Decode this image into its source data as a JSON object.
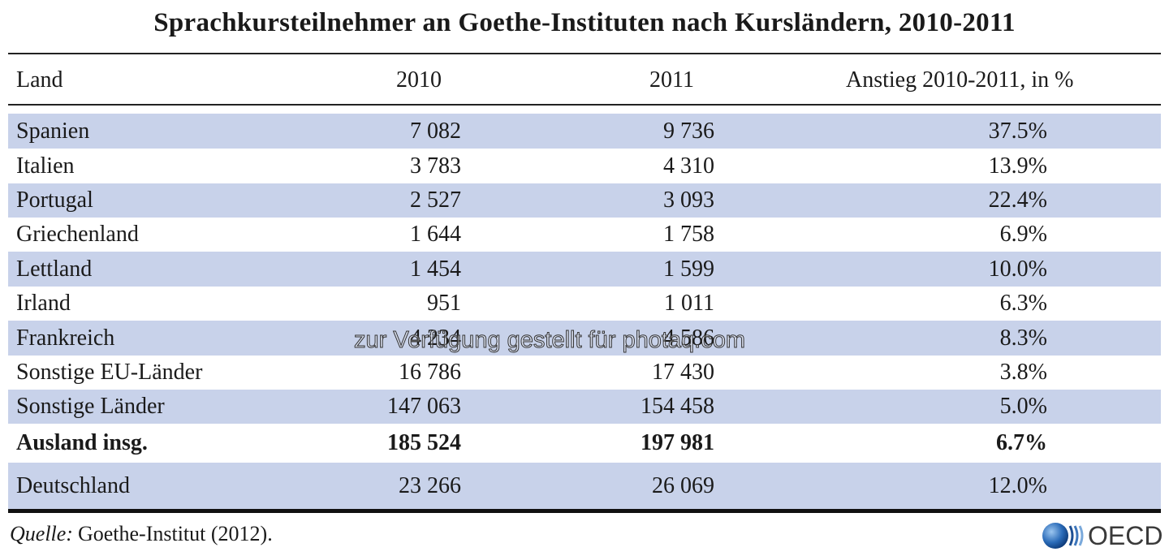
{
  "title": "Sprachkursteilnehmer an Goethe-Instituten nach Kursländern, 2010-2011",
  "table": {
    "header": [
      "Land",
      "2010",
      "2011",
      "Anstieg 2010-2011, in %"
    ],
    "rows": [
      [
        "Spanien",
        "7 082",
        "9 736",
        "37.5%"
      ],
      [
        "Italien",
        "3 783",
        "4 310",
        "13.9%"
      ],
      [
        "Portugal",
        "2 527",
        "3 093",
        "22.4%"
      ],
      [
        "Griechenland",
        "1 644",
        "1 758",
        "6.9%"
      ],
      [
        "Lettland",
        "1 454",
        "1 599",
        "10.0%"
      ],
      [
        "Irland",
        "951",
        "1 011",
        "6.3%"
      ],
      [
        "Frankreich",
        "4 234",
        "4 586",
        "8.3%"
      ],
      [
        "Sonstige EU-Länder",
        "16 786",
        "17 430",
        "3.8%"
      ],
      [
        "Sonstige Länder",
        "147 063",
        "154 458",
        "5.0%"
      ],
      [
        "Ausland insg.",
        "185 524",
        "197 981",
        "6.7%"
      ],
      [
        "Deutschland",
        "23 266",
        "26 069",
        "12.0%"
      ]
    ]
  },
  "source": {
    "label": "Quelle:",
    "text": "Goethe-Institut (2012)."
  },
  "watermark": "zur Verfügung gestellt für photaq.com",
  "logo": "OECD"
}
